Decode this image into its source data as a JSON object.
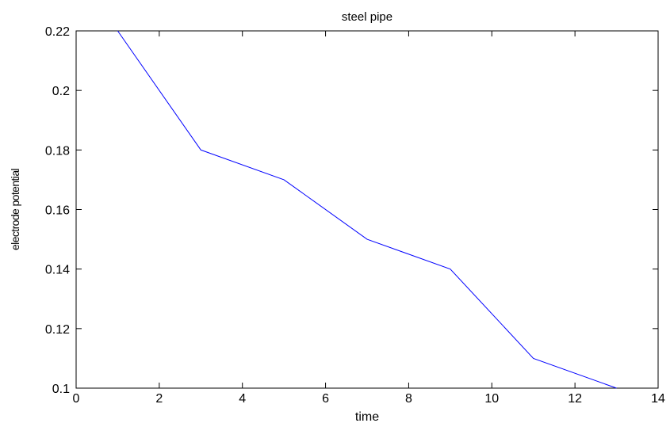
{
  "chart_data": {
    "type": "line",
    "title": "steel pipe",
    "xlabel": "time",
    "ylabel": "electrode potential",
    "xlim": [
      0,
      14
    ],
    "ylim": [
      0.1,
      0.22
    ],
    "xticks": [
      0,
      2,
      4,
      6,
      8,
      10,
      12,
      14
    ],
    "xtick_labels": [
      "0",
      "2",
      "4",
      "6",
      "8",
      "10",
      "12",
      "14"
    ],
    "yticks": [
      0.1,
      0.12,
      0.14,
      0.16,
      0.18,
      0.2,
      0.22
    ],
    "ytick_labels": [
      "0.1",
      "0.12",
      "0.14",
      "0.16",
      "0.18",
      "0.2",
      "0.22"
    ],
    "grid": false,
    "legend": "none",
    "series": [
      {
        "color": "#0000ff",
        "x": [
          1,
          3,
          5,
          7,
          9,
          11,
          13
        ],
        "y": [
          0.22,
          0.18,
          0.17,
          0.15,
          0.14,
          0.11,
          0.1
        ]
      }
    ]
  }
}
